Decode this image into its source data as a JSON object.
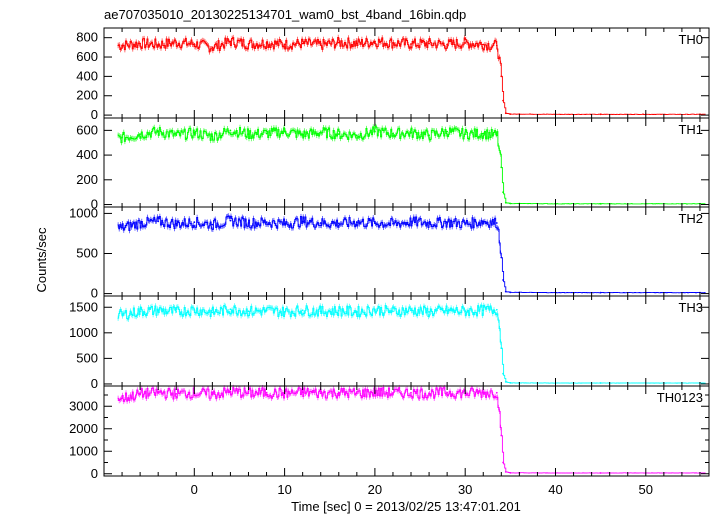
{
  "chart_data": {
    "type": "line",
    "title": "ae707035010_20130225134701_wam0_bst_4band_16bin.qdp",
    "xlabel": "Time [sec] 0 = 2013/02/25 13:47:01.201",
    "ylabel": "Counts/sec",
    "xlim": [
      -10,
      57
    ],
    "x_ticks": [
      0,
      10,
      20,
      30,
      40,
      50
    ],
    "x_tick_labels": [
      "0",
      "10",
      "20",
      "30",
      "40",
      "50"
    ],
    "grid": false,
    "error_bars": true,
    "panels": [
      {
        "name": "TH0",
        "color": "#ff0000",
        "ylim": [
          -30,
          900
        ],
        "y_ticks": [
          0,
          200,
          400,
          600,
          800
        ],
        "y_tick_labels": [
          "0",
          "200",
          "400",
          "600",
          "800"
        ],
        "x": [
          -8,
          -6,
          -4,
          -2,
          0,
          2,
          4,
          6,
          8,
          10,
          12,
          14,
          16,
          18,
          20,
          22,
          24,
          26,
          28,
          30,
          32,
          33.5,
          34.0,
          34.2,
          34.5,
          35,
          36,
          40,
          45,
          50,
          56
        ],
        "y": [
          720,
          740,
          730,
          750,
          735,
          700,
          760,
          735,
          745,
          730,
          740,
          725,
          750,
          740,
          760,
          745,
          735,
          740,
          730,
          745,
          730,
          720,
          400,
          150,
          20,
          10,
          10,
          8,
          8,
          8,
          8
        ]
      },
      {
        "name": "TH1",
        "color": "#00ff00",
        "ylim": [
          -20,
          700
        ],
        "y_ticks": [
          0,
          200,
          400,
          600
        ],
        "y_tick_labels": [
          "0",
          "200",
          "400",
          "600"
        ],
        "x": [
          -8,
          -6,
          -4,
          -2,
          0,
          2,
          4,
          6,
          8,
          10,
          12,
          14,
          16,
          18,
          20,
          22,
          24,
          26,
          28,
          30,
          32,
          33.5,
          34.0,
          34.2,
          34.5,
          35,
          36,
          40,
          45,
          50,
          56
        ],
        "y": [
          540,
          570,
          590,
          560,
          580,
          550,
          600,
          570,
          575,
          590,
          565,
          585,
          570,
          560,
          590,
          575,
          580,
          560,
          590,
          570,
          575,
          560,
          300,
          100,
          15,
          8,
          8,
          6,
          6,
          6,
          6
        ]
      },
      {
        "name": "TH2",
        "color": "#0000ff",
        "ylim": [
          -30,
          1080
        ],
        "y_ticks": [
          0,
          500,
          1000
        ],
        "y_tick_labels": [
          "0",
          "500",
          "1000"
        ],
        "x": [
          -8,
          -6,
          -4,
          -2,
          0,
          2,
          4,
          6,
          8,
          10,
          12,
          14,
          16,
          18,
          20,
          22,
          24,
          26,
          28,
          30,
          32,
          33.5,
          34.0,
          34.2,
          34.5,
          35,
          36,
          40,
          45,
          50,
          56
        ],
        "y": [
          820,
          880,
          900,
          870,
          890,
          860,
          910,
          880,
          890,
          870,
          900,
          880,
          875,
          890,
          880,
          870,
          895,
          880,
          890,
          870,
          900,
          880,
          450,
          170,
          25,
          15,
          15,
          12,
          12,
          12,
          12
        ]
      },
      {
        "name": "TH3",
        "color": "#00ffff",
        "ylim": [
          -40,
          1720
        ],
        "y_ticks": [
          0,
          500,
          1000,
          1500
        ],
        "y_tick_labels": [
          "0",
          "500",
          "1000",
          "1500"
        ],
        "x": [
          -8,
          -6,
          -4,
          -2,
          0,
          2,
          4,
          6,
          8,
          10,
          12,
          14,
          16,
          18,
          20,
          22,
          24,
          26,
          28,
          30,
          32,
          33.5,
          34.0,
          34.2,
          34.5,
          35,
          36,
          40,
          45,
          50,
          56
        ],
        "y": [
          1350,
          1420,
          1440,
          1410,
          1450,
          1400,
          1460,
          1420,
          1430,
          1410,
          1440,
          1420,
          1430,
          1410,
          1450,
          1420,
          1440,
          1410,
          1430,
          1420,
          1440,
          1450,
          700,
          200,
          40,
          20,
          20,
          18,
          18,
          18,
          18
        ]
      },
      {
        "name": "TH0123",
        "color": "#ff00ff",
        "ylim": [
          -100,
          3900
        ],
        "y_ticks": [
          0,
          500,
          1000,
          1500,
          2000,
          2500,
          3000,
          3500
        ],
        "y_tick_labels": [
          "0",
          "",
          "1000",
          "",
          "2000",
          "",
          "3000",
          ""
        ],
        "x": [
          -8,
          -6,
          -4,
          -2,
          0,
          2,
          4,
          6,
          8,
          10,
          12,
          14,
          16,
          18,
          20,
          22,
          24,
          26,
          28,
          30,
          32,
          33.5,
          34.0,
          34.2,
          34.5,
          35,
          36,
          40,
          45,
          50,
          56
        ],
        "y": [
          3350,
          3550,
          3600,
          3550,
          3600,
          3520,
          3650,
          3580,
          3600,
          3560,
          3620,
          3580,
          3600,
          3570,
          3620,
          3590,
          3600,
          3570,
          3610,
          3580,
          3600,
          3600,
          1700,
          500,
          80,
          40,
          40,
          35,
          35,
          35,
          35
        ]
      }
    ]
  }
}
